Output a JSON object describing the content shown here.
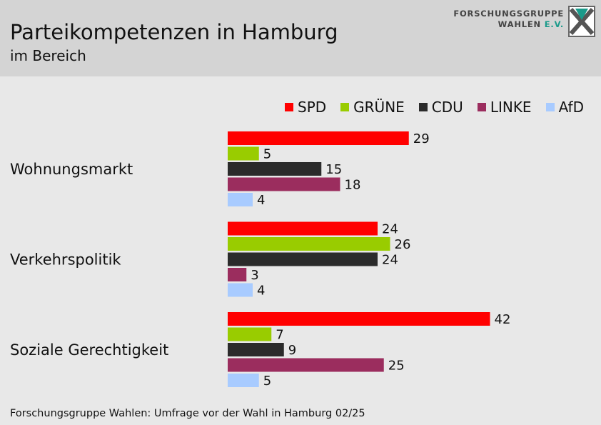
{
  "header": {
    "title": "Parteikompetenzen in Hamburg",
    "subtitle": "im Bereich",
    "logo_line1": "FORSCHUNGSGRUPPE",
    "logo_line2": "WAHLEN",
    "logo_ev": "E.V."
  },
  "colors": {
    "SPD": "#ff0000",
    "GRÜNE": "#99cc00",
    "CDU": "#2b2b2b",
    "LINKE": "#9b2d5e",
    "AfD": "#a8cbff"
  },
  "chart_data": {
    "type": "bar",
    "orientation": "horizontal",
    "title": "Parteikompetenzen in Hamburg",
    "subtitle": "im Bereich",
    "categories": [
      "Wohnungsmarkt",
      "Verkehrspolitik",
      "Soziale Gerechtigkeit"
    ],
    "series": [
      {
        "name": "SPD",
        "values": [
          29,
          24,
          42
        ]
      },
      {
        "name": "GRÜNE",
        "values": [
          5,
          26,
          7
        ]
      },
      {
        "name": "CDU",
        "values": [
          15,
          24,
          9
        ]
      },
      {
        "name": "LINKE",
        "values": [
          18,
          3,
          25
        ]
      },
      {
        "name": "AfD",
        "values": [
          4,
          4,
          5
        ]
      }
    ],
    "legend_position": "top-right",
    "grid": false
  },
  "footer": {
    "source": "Forschungsgruppe Wahlen: Umfrage vor der Wahl in Hamburg 02/25"
  }
}
